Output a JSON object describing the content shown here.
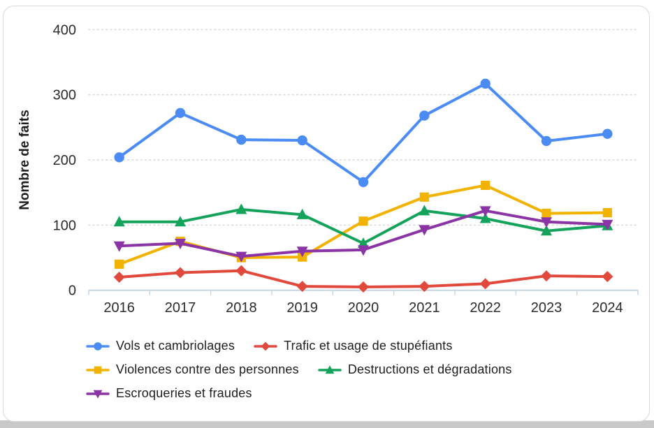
{
  "page": {
    "card_border_color": "#d9d9d9",
    "bottom_strip_color": "#c9c9c9"
  },
  "chart_data": {
    "type": "line",
    "title": "",
    "xlabel": "",
    "ylabel": "Nombre de faits",
    "x": [
      "2016",
      "2017",
      "2018",
      "2019",
      "2020",
      "2021",
      "2022",
      "2023",
      "2024"
    ],
    "ylim": [
      0,
      400
    ],
    "yticks": [
      0,
      100,
      200,
      300,
      400
    ],
    "grid": "horizontal-dotted",
    "legend_position": "bottom",
    "axis_color": "#c7d6e4",
    "gridline_color": "#d8d8d8",
    "tick_label_color": "#2b2b2b",
    "series": [
      {
        "name": "Vols et cambriolages",
        "color": "#4b8bf4",
        "marker": "circle",
        "values": [
          204,
          272,
          231,
          230,
          166,
          268,
          317,
          229,
          240
        ]
      },
      {
        "name": "Trafic et usage de stupéfiants",
        "color": "#e0493c",
        "marker": "diamond",
        "values": [
          20,
          27,
          30,
          6,
          5,
          6,
          10,
          22,
          21
        ]
      },
      {
        "name": "Violences contre des personnes",
        "color": "#f2b200",
        "marker": "square",
        "values": [
          40,
          75,
          50,
          51,
          106,
          143,
          161,
          118,
          119
        ]
      },
      {
        "name": "Destructions et dégradations",
        "color": "#15a35c",
        "marker": "triangle-up",
        "values": [
          105,
          105,
          124,
          116,
          72,
          122,
          110,
          91,
          99
        ]
      },
      {
        "name": "Escroqueries et fraudes",
        "color": "#8b34a6",
        "marker": "triangle-down",
        "values": [
          68,
          72,
          52,
          60,
          62,
          93,
          122,
          105,
          101
        ]
      }
    ]
  }
}
